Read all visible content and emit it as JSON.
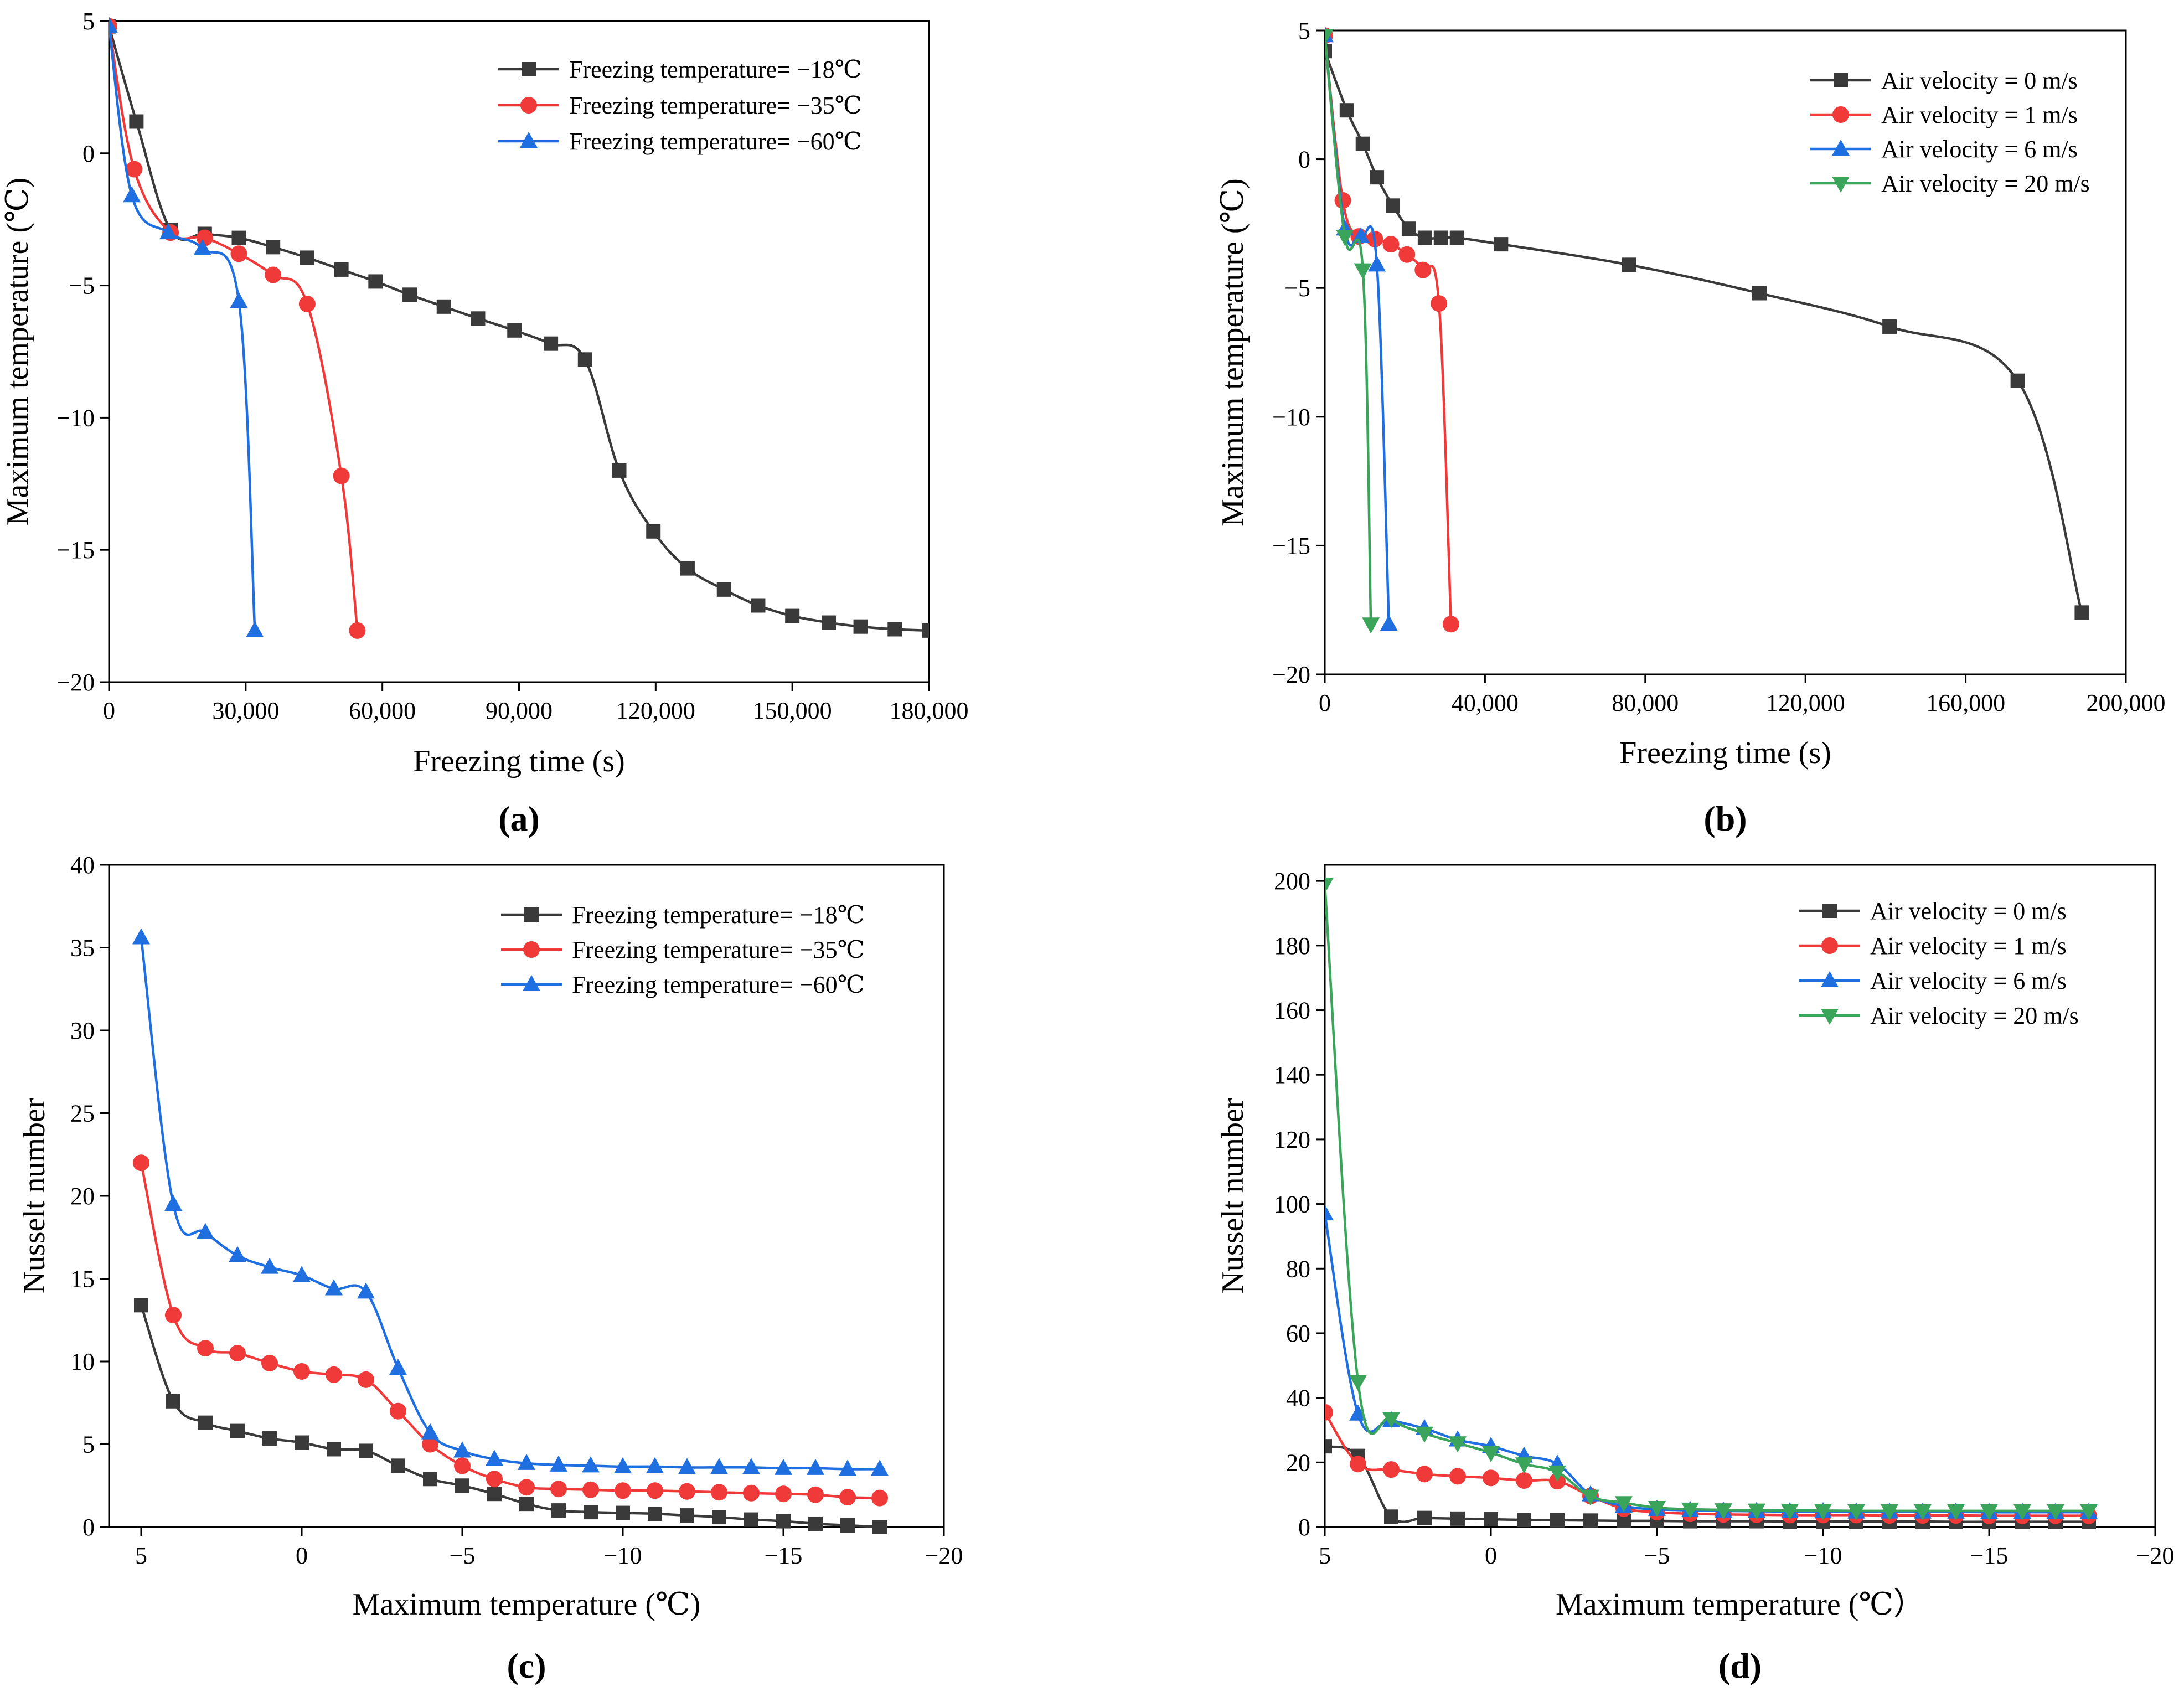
{
  "figure": {
    "panel_labels": [
      "(a)",
      "(b)",
      "(c)",
      "(d)"
    ]
  },
  "colors": {
    "black_series": "#3a3a3a",
    "red_series": "#f03a3a",
    "blue_series": "#1f6fe0",
    "green_series": "#3aa55a"
  },
  "chart_data": [
    {
      "id": "a",
      "type": "line",
      "xlabel": "Freezing time (s)",
      "ylabel": "Maximum temperature (℃)",
      "xlim": [
        0,
        180000
      ],
      "ylim": [
        -20,
        5
      ],
      "xticks": [
        0,
        30000,
        60000,
        90000,
        120000,
        150000,
        180000
      ],
      "xtick_labels": [
        "0",
        "30,000",
        "60,000",
        "90,000",
        "120,000",
        "150,000",
        "180,000"
      ],
      "yticks": [
        -20,
        -15,
        -10,
        -5,
        0,
        5
      ],
      "ytick_labels": [
        "−20",
        "−15",
        "−10",
        "−5",
        "0",
        "5"
      ],
      "legend_position": "top-right",
      "series": [
        {
          "name": "Freezing temperature= −18℃",
          "color": "#3a3a3a",
          "marker": "square",
          "x": [
            0,
            6000,
            13500,
            21000,
            28500,
            36000,
            43500,
            51000,
            58500,
            66000,
            73500,
            81000,
            89000,
            97000,
            104500,
            112000,
            119500,
            127000,
            135000,
            142500,
            150000,
            158000,
            165000,
            172500,
            180000
          ],
          "y": [
            4.8,
            1.2,
            -2.9,
            -3.05,
            -3.2,
            -3.55,
            -3.95,
            -4.4,
            -4.85,
            -5.35,
            -5.8,
            -6.25,
            -6.7,
            -7.2,
            -7.8,
            -12.0,
            -14.3,
            -15.7,
            -16.5,
            -17.1,
            -17.5,
            -17.75,
            -17.9,
            -18.0,
            -18.05
          ]
        },
        {
          "name": "Freezing temperature= −35℃",
          "color": "#f03a3a",
          "marker": "circle",
          "x": [
            0,
            5500,
            13500,
            21000,
            28500,
            36000,
            43500,
            51000,
            54500
          ],
          "y": [
            4.8,
            -0.6,
            -3.0,
            -3.2,
            -3.8,
            -4.6,
            -5.7,
            -12.2,
            -18.05
          ]
        },
        {
          "name": "Freezing temperature= −60℃",
          "color": "#1f6fe0",
          "marker": "triangle-up",
          "x": [
            0,
            5000,
            13000,
            20500,
            28500,
            32000
          ],
          "y": [
            4.8,
            -1.6,
            -3.0,
            -3.6,
            -5.6,
            -18.05
          ]
        }
      ]
    },
    {
      "id": "b",
      "type": "line",
      "xlabel": "Freezing time (s)",
      "ylabel": "Maximum temperature (℃)",
      "xlim": [
        0,
        200000
      ],
      "ylim": [
        -20,
        5
      ],
      "xticks": [
        0,
        40000,
        80000,
        120000,
        160000,
        200000
      ],
      "xtick_labels": [
        "0",
        "40,000",
        "80,000",
        "120,000",
        "160,000",
        "200,000"
      ],
      "yticks": [
        -20,
        -15,
        -10,
        -5,
        0,
        5
      ],
      "ytick_labels": [
        "−20",
        "−15",
        "−10",
        "−5",
        "0",
        "5"
      ],
      "legend_position": "top-right",
      "series": [
        {
          "name": "Air velocity = 0 m/s",
          "color": "#3a3a3a",
          "marker": "square",
          "x": [
            0,
            5500,
            9500,
            13000,
            17000,
            21000,
            25000,
            29000,
            33000,
            44000,
            76000,
            108500,
            141000,
            173000,
            189000
          ],
          "y": [
            4.2,
            1.9,
            0.6,
            -0.7,
            -1.8,
            -2.7,
            -3.05,
            -3.05,
            -3.05,
            -3.3,
            -4.1,
            -5.2,
            -6.5,
            -8.6,
            -17.6
          ]
        },
        {
          "name": "Air velocity = 1 m/s",
          "color": "#f03a3a",
          "marker": "circle",
          "x": [
            0,
            4500,
            8500,
            12500,
            16500,
            20500,
            24500,
            28500,
            31500
          ],
          "y": [
            4.8,
            -1.6,
            -3.0,
            -3.1,
            -3.3,
            -3.7,
            -4.3,
            -5.6,
            -18.05
          ]
        },
        {
          "name": "Air velocity = 6 m/s",
          "color": "#1f6fe0",
          "marker": "triangle-up",
          "x": [
            0,
            5000,
            9000,
            13000,
            16000
          ],
          "y": [
            4.8,
            -2.7,
            -3.0,
            -4.1,
            -18.05
          ]
        },
        {
          "name": "Air velocity = 20 m/s",
          "color": "#3aa55a",
          "marker": "triangle-down",
          "x": [
            0,
            5000,
            9500,
            11500
          ],
          "y": [
            4.8,
            -3.0,
            -4.3,
            -18.05
          ]
        }
      ]
    },
    {
      "id": "c",
      "type": "line",
      "xlabel": "Maximum temperature (℃)",
      "ylabel": "Nusselt number",
      "xlim": [
        6,
        -20
      ],
      "ylim": [
        0,
        40
      ],
      "xticks": [
        5,
        0,
        -5,
        -10,
        -15,
        -20
      ],
      "xtick_labels": [
        "5",
        "0",
        "−5",
        "−10",
        "−15",
        "−20"
      ],
      "yticks": [
        0,
        5,
        10,
        15,
        20,
        25,
        30,
        35,
        40
      ],
      "ytick_labels": [
        "0",
        "5",
        "10",
        "15",
        "20",
        "25",
        "30",
        "35",
        "40"
      ],
      "legend_position": "top-right",
      "series": [
        {
          "name": "Freezing temperature= −18℃",
          "color": "#3a3a3a",
          "marker": "square",
          "x": [
            5,
            4,
            3,
            2,
            1,
            0,
            -1,
            -2,
            -3,
            -4,
            -5,
            -6,
            -7,
            -8,
            -9,
            -10,
            -11,
            -12,
            -13,
            -14,
            -15,
            -16,
            -17,
            -18
          ],
          "y": [
            13.4,
            7.6,
            6.3,
            5.8,
            5.35,
            5.1,
            4.7,
            4.6,
            3.7,
            2.9,
            2.5,
            2.0,
            1.4,
            1.0,
            0.9,
            0.85,
            0.8,
            0.7,
            0.6,
            0.45,
            0.35,
            0.2,
            0.1,
            0.0
          ]
        },
        {
          "name": "Freezing temperature= −35℃",
          "color": "#f03a3a",
          "marker": "circle",
          "x": [
            5,
            4,
            3,
            2,
            1,
            0,
            -1,
            -2,
            -3,
            -4,
            -5,
            -6,
            -7,
            -8,
            -9,
            -10,
            -11,
            -12,
            -13,
            -14,
            -15,
            -16,
            -17,
            -18
          ],
          "y": [
            22.0,
            12.8,
            10.8,
            10.5,
            9.9,
            9.4,
            9.2,
            8.9,
            7.0,
            5.0,
            3.7,
            2.9,
            2.4,
            2.3,
            2.25,
            2.2,
            2.2,
            2.15,
            2.1,
            2.05,
            2.0,
            1.95,
            1.8,
            1.75
          ]
        },
        {
          "name": "Freezing temperature= −60℃",
          "color": "#1f6fe0",
          "marker": "triangle-up",
          "x": [
            5,
            4,
            3,
            2,
            1,
            0,
            -1,
            -2,
            -3,
            -4,
            -5,
            -6,
            -7,
            -8,
            -9,
            -10,
            -11,
            -12,
            -13,
            -14,
            -15,
            -16,
            -17,
            -18
          ],
          "y": [
            35.6,
            19.5,
            17.8,
            16.4,
            15.7,
            15.2,
            14.4,
            14.2,
            9.6,
            5.7,
            4.6,
            4.1,
            3.85,
            3.75,
            3.7,
            3.65,
            3.65,
            3.6,
            3.6,
            3.6,
            3.55,
            3.55,
            3.5,
            3.5
          ]
        }
      ]
    },
    {
      "id": "d",
      "type": "line",
      "xlabel": "Maximum temperature (℃）",
      "ylabel": "Nusselt number",
      "xlim": [
        5,
        -20
      ],
      "ylim": [
        0,
        205
      ],
      "xticks": [
        5,
        0,
        -5,
        -10,
        -15,
        -20
      ],
      "xtick_labels": [
        "5",
        "0",
        "−5",
        "−10",
        "−15",
        "−20"
      ],
      "yticks": [
        0,
        20,
        40,
        60,
        80,
        100,
        120,
        140,
        160,
        180,
        200
      ],
      "ytick_labels": [
        "0",
        "20",
        "40",
        "60",
        "80",
        "100",
        "120",
        "140",
        "160",
        "180",
        "200"
      ],
      "legend_position": "top-right",
      "series": [
        {
          "name": "Air velocity = 0 m/s",
          "color": "#3a3a3a",
          "marker": "square",
          "x": [
            5,
            4,
            3,
            2,
            1,
            0,
            -1,
            -2,
            -3,
            -4,
            -5,
            -6,
            -7,
            -8,
            -9,
            -10,
            -11,
            -12,
            -13,
            -14,
            -15,
            -16,
            -17,
            -18
          ],
          "y": [
            25,
            22,
            3.2,
            2.8,
            2.6,
            2.4,
            2.2,
            2.1,
            2.0,
            1.9,
            1.9,
            1.8,
            1.8,
            1.8,
            1.7,
            1.7,
            1.7,
            1.7,
            1.7,
            1.6,
            1.6,
            1.6,
            1.6,
            1.6
          ]
        },
        {
          "name": "Air velocity = 1 m/s",
          "color": "#f03a3a",
          "marker": "circle",
          "x": [
            5,
            4,
            3,
            2,
            1,
            0,
            -1,
            -2,
            -3,
            -4,
            -5,
            -6,
            -7,
            -8,
            -9,
            -10,
            -11,
            -12,
            -13,
            -14,
            -15,
            -16,
            -17,
            -18
          ],
          "y": [
            35.5,
            19.5,
            17.8,
            16.4,
            15.7,
            15.2,
            14.4,
            14.2,
            9.6,
            5.7,
            4.6,
            4.1,
            3.9,
            3.8,
            3.7,
            3.7,
            3.7,
            3.6,
            3.6,
            3.6,
            3.5,
            3.5,
            3.5,
            3.5
          ]
        },
        {
          "name": "Air velocity = 6 m/s",
          "color": "#1f6fe0",
          "marker": "triangle-up",
          "x": [
            5,
            4,
            3,
            2,
            1,
            0,
            -1,
            -2,
            -3,
            -4,
            -5,
            -6,
            -7,
            -8,
            -9,
            -10,
            -11,
            -12,
            -13,
            -14,
            -15,
            -16,
            -17,
            -18
          ],
          "y": [
            97,
            35,
            33,
            30.5,
            27,
            25,
            22,
            19.5,
            10,
            6.5,
            5.5,
            5.2,
            5.0,
            4.9,
            4.8,
            4.8,
            4.7,
            4.7,
            4.7,
            4.7,
            4.6,
            4.6,
            4.6,
            4.6
          ]
        },
        {
          "name": "Air velocity = 20 m/s",
          "color": "#3aa55a",
          "marker": "triangle-down",
          "x": [
            5,
            4,
            3,
            2,
            1,
            0,
            -1,
            -2,
            -3,
            -4,
            -5,
            -6,
            -7,
            -8,
            -9,
            -10,
            -11,
            -12,
            -13,
            -14,
            -15,
            -16,
            -17,
            -18
          ],
          "y": [
            199,
            45,
            33.5,
            29,
            26,
            23,
            19.5,
            17,
            9.5,
            7.5,
            6.0,
            5.5,
            5.3,
            5.2,
            5.1,
            5.1,
            5.0,
            5.0,
            5.0,
            5.0,
            5.0,
            5.0,
            5.0,
            5.0
          ]
        }
      ]
    }
  ]
}
